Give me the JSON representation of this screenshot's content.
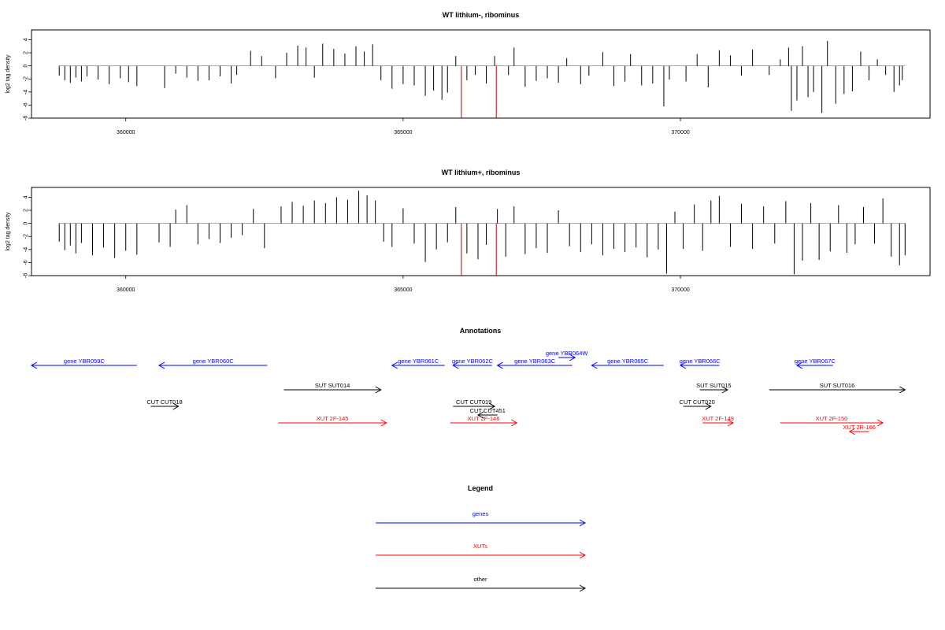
{
  "chart_data": [
    {
      "type": "bar",
      "title": "WT lithium-, ribominus",
      "ylabel": "log2 tag density",
      "ylim": [
        -8,
        5.5
      ],
      "y_ticks": [
        "-8",
        "-6",
        "-4",
        "-2",
        "0",
        "2",
        "4"
      ],
      "xlim": [
        358300,
        374500
      ],
      "x_ticks": [
        "360000",
        "365000",
        "370000"
      ],
      "highlight_lines": [
        366050,
        366680
      ],
      "highlight_color": "#cc0000",
      "series": [
        {
          "values": [
            [
              358800,
              -1.5
            ],
            [
              358900,
              -2.2
            ],
            [
              359000,
              -2.6
            ],
            [
              359100,
              -1.8
            ],
            [
              359200,
              -2.4
            ],
            [
              359300,
              -1.6
            ],
            [
              359500,
              -2.1
            ],
            [
              359700,
              -2.8
            ],
            [
              359900,
              -1.9
            ],
            [
              360050,
              -2.5
            ],
            [
              360200,
              -3.1
            ],
            [
              360700,
              -3.4
            ],
            [
              360900,
              -1.2
            ],
            [
              361100,
              -1.8
            ],
            [
              361300,
              -2.3
            ],
            [
              361500,
              -2.2
            ],
            [
              361700,
              -1.6
            ],
            [
              361900,
              -2.7
            ],
            [
              362000,
              -1.4
            ],
            [
              362250,
              2.3
            ],
            [
              362450,
              1.5
            ],
            [
              362700,
              -1.9
            ],
            [
              362900,
              2.0
            ],
            [
              363100,
              3.1
            ],
            [
              363250,
              2.8
            ],
            [
              363400,
              -1.8
            ],
            [
              363550,
              3.4
            ],
            [
              363750,
              2.6
            ],
            [
              363950,
              1.9
            ],
            [
              364150,
              3.0
            ],
            [
              364300,
              2.2
            ],
            [
              364450,
              3.3
            ],
            [
              364600,
              -2.2
            ],
            [
              364800,
              -3.5
            ],
            [
              365000,
              -2.8
            ],
            [
              365200,
              -3.0
            ],
            [
              365400,
              -4.6
            ],
            [
              365550,
              -3.8
            ],
            [
              365700,
              -5.2
            ],
            [
              365800,
              -4.1
            ],
            [
              365950,
              1.5
            ],
            [
              366150,
              -2.2
            ],
            [
              366300,
              -1.4
            ],
            [
              366500,
              -2.7
            ],
            [
              366650,
              1.5
            ],
            [
              366900,
              -1.4
            ],
            [
              367000,
              2.8
            ],
            [
              367200,
              -3.2
            ],
            [
              367400,
              -2.3
            ],
            [
              367600,
              -1.9
            ],
            [
              367800,
              -2.6
            ],
            [
              367950,
              1.2
            ],
            [
              368200,
              -2.8
            ],
            [
              368350,
              -1.5
            ],
            [
              368600,
              2.1
            ],
            [
              368800,
              -3.1
            ],
            [
              369000,
              -2.4
            ],
            [
              369100,
              1.8
            ],
            [
              369300,
              -3.0
            ],
            [
              369500,
              -2.7
            ],
            [
              369700,
              -6.2
            ],
            [
              369800,
              -2.1
            ],
            [
              370100,
              -2.4
            ],
            [
              370300,
              1.8
            ],
            [
              370500,
              -3.3
            ],
            [
              370700,
              2.4
            ],
            [
              370900,
              1.6
            ],
            [
              371100,
              -1.5
            ],
            [
              371300,
              2.5
            ],
            [
              371600,
              -1.4
            ],
            [
              371800,
              1.0
            ],
            [
              371950,
              2.8
            ],
            [
              372000,
              -6.9
            ],
            [
              372100,
              -5.3
            ],
            [
              372200,
              3.0
            ],
            [
              372300,
              -4.8
            ],
            [
              372400,
              -4.0
            ],
            [
              372550,
              -7.2
            ],
            [
              372650,
              3.8
            ],
            [
              372800,
              -5.8
            ],
            [
              372950,
              -4.3
            ],
            [
              373100,
              -3.9
            ],
            [
              373250,
              2.2
            ],
            [
              373400,
              -2.2
            ],
            [
              373550,
              1.0
            ],
            [
              373700,
              -1.4
            ],
            [
              373850,
              -4.0
            ],
            [
              373950,
              -3.0
            ],
            [
              374000,
              -2.2
            ]
          ]
        }
      ]
    },
    {
      "type": "bar",
      "title": "WT lithium+, ribominus",
      "ylabel": "log2 tag density",
      "ylim": [
        -8,
        5.5
      ],
      "y_ticks": [
        "-8",
        "-6",
        "-4",
        "-2",
        "0",
        "2",
        "4"
      ],
      "xlim": [
        358300,
        374500
      ],
      "x_ticks": [
        "360000",
        "365000",
        "370000"
      ],
      "highlight_lines": [
        366050,
        366680
      ],
      "highlight_color": "#cc0000",
      "series": [
        {
          "values": [
            [
              358800,
              -2.8
            ],
            [
              358900,
              -4.1
            ],
            [
              359000,
              -3.4
            ],
            [
              359100,
              -4.6
            ],
            [
              359200,
              -3.0
            ],
            [
              359400,
              -4.9
            ],
            [
              359600,
              -3.7
            ],
            [
              359800,
              -5.3
            ],
            [
              360000,
              -4.2
            ],
            [
              360200,
              -4.8
            ],
            [
              360600,
              -2.9
            ],
            [
              360800,
              -3.6
            ],
            [
              360900,
              2.1
            ],
            [
              361100,
              2.8
            ],
            [
              361300,
              -3.2
            ],
            [
              361500,
              -2.4
            ],
            [
              361700,
              -3.0
            ],
            [
              361900,
              -2.2
            ],
            [
              362100,
              -1.8
            ],
            [
              362300,
              2.2
            ],
            [
              362500,
              -3.8
            ],
            [
              362800,
              2.6
            ],
            [
              363000,
              3.3
            ],
            [
              363200,
              2.7
            ],
            [
              363400,
              3.5
            ],
            [
              363600,
              3.1
            ],
            [
              363800,
              4.0
            ],
            [
              364000,
              3.6
            ],
            [
              364200,
              5.0
            ],
            [
              364350,
              4.3
            ],
            [
              364500,
              3.5
            ],
            [
              364650,
              -2.8
            ],
            [
              364800,
              -3.6
            ],
            [
              365000,
              2.3
            ],
            [
              365200,
              -3.1
            ],
            [
              365400,
              -5.9
            ],
            [
              365600,
              -4.0
            ],
            [
              365800,
              -2.9
            ],
            [
              365950,
              2.5
            ],
            [
              366150,
              -4.6
            ],
            [
              366350,
              -5.5
            ],
            [
              366500,
              -3.3
            ],
            [
              366700,
              2.2
            ],
            [
              366850,
              -5.1
            ],
            [
              367000,
              2.6
            ],
            [
              367200,
              -4.7
            ],
            [
              367400,
              -3.8
            ],
            [
              367600,
              -4.5
            ],
            [
              367800,
              2.0
            ],
            [
              368000,
              -3.5
            ],
            [
              368200,
              -4.4
            ],
            [
              368400,
              -3.2
            ],
            [
              368600,
              -4.9
            ],
            [
              368800,
              -3.9
            ],
            [
              369000,
              -4.4
            ],
            [
              369200,
              -3.7
            ],
            [
              369400,
              -5.2
            ],
            [
              369600,
              -4.0
            ],
            [
              369750,
              -7.7
            ],
            [
              369900,
              1.8
            ],
            [
              370050,
              -3.9
            ],
            [
              370250,
              2.9
            ],
            [
              370400,
              -4.2
            ],
            [
              370550,
              3.5
            ],
            [
              370700,
              4.2
            ],
            [
              370900,
              -3.6
            ],
            [
              371100,
              3.0
            ],
            [
              371300,
              -3.9
            ],
            [
              371500,
              2.6
            ],
            [
              371700,
              -3.1
            ],
            [
              371900,
              3.4
            ],
            [
              372050,
              -7.8
            ],
            [
              372200,
              -5.7
            ],
            [
              372350,
              3.1
            ],
            [
              372500,
              -5.6
            ],
            [
              372700,
              -4.3
            ],
            [
              372850,
              2.8
            ],
            [
              373000,
              -4.5
            ],
            [
              373150,
              -3.2
            ],
            [
              373300,
              2.5
            ],
            [
              373500,
              -3.1
            ],
            [
              373650,
              3.8
            ],
            [
              373800,
              -5.1
            ],
            [
              373950,
              -6.4
            ],
            [
              374050,
              -4.9
            ]
          ]
        }
      ]
    }
  ],
  "annotations": {
    "title": "Annotations",
    "features": [
      {
        "label": "gene YBR059C",
        "color": "#0000ff",
        "start": 358300,
        "end": 360200,
        "strand": "-",
        "row": 1
      },
      {
        "label": "gene YBR060C",
        "color": "#0000ff",
        "start": 360600,
        "end": 362550,
        "strand": "-",
        "row": 1
      },
      {
        "label": "gene YBR061C",
        "color": "#0000ff",
        "start": 364800,
        "end": 365750,
        "strand": "-",
        "row": 1
      },
      {
        "label": "gene YBR062C",
        "color": "#0000ff",
        "start": 365900,
        "end": 366600,
        "strand": "-",
        "row": 1
      },
      {
        "label": "gene YBR063C",
        "color": "#0000ff",
        "start": 366700,
        "end": 368050,
        "strand": "-",
        "row": 1
      },
      {
        "label": "gene YBR064W",
        "color": "#0000ff",
        "start": 367800,
        "end": 368100,
        "strand": "+",
        "row": 0
      },
      {
        "label": "gene YBR065C",
        "color": "#0000ff",
        "start": 368400,
        "end": 369700,
        "strand": "-",
        "row": 1
      },
      {
        "label": "gene YBR066C",
        "color": "#0000ff",
        "start": 370000,
        "end": 370700,
        "strand": "-",
        "row": 1
      },
      {
        "label": "gene YBR067C",
        "color": "#0000ff",
        "start": 372100,
        "end": 372750,
        "strand": "-",
        "row": 1
      },
      {
        "label": "SUT SUT014",
        "color": "#000000",
        "start": 362850,
        "end": 364600,
        "strand": "+",
        "row": 2
      },
      {
        "label": "SUT SUT015",
        "color": "#000000",
        "start": 370350,
        "end": 370850,
        "strand": "+",
        "row": 2
      },
      {
        "label": "SUT SUT016",
        "color": "#000000",
        "start": 371600,
        "end": 374050,
        "strand": "+",
        "row": 2
      },
      {
        "label": "CUT CUT018",
        "color": "#000000",
        "start": 360450,
        "end": 360950,
        "strand": "+",
        "row": 3
      },
      {
        "label": "CUT CUT019",
        "color": "#000000",
        "start": 365900,
        "end": 366650,
        "strand": "+",
        "row": 3
      },
      {
        "label": "CUT CUT451",
        "color": "#000000",
        "start": 366350,
        "end": 366700,
        "strand": "-",
        "row": 3.55
      },
      {
        "label": "CUT CUT020",
        "color": "#000000",
        "start": 370050,
        "end": 370550,
        "strand": "+",
        "row": 3
      },
      {
        "label": "XUT 2F-145",
        "color": "#ff0000",
        "start": 362750,
        "end": 364700,
        "strand": "+",
        "row": 4
      },
      {
        "label": "XUT 2F-146",
        "color": "#ff0000",
        "start": 365850,
        "end": 367050,
        "strand": "+",
        "row": 4
      },
      {
        "label": "XUT 2F-149",
        "color": "#ff0000",
        "start": 370400,
        "end": 370950,
        "strand": "+",
        "row": 4
      },
      {
        "label": "XUT 2F-150",
        "color": "#ff0000",
        "start": 371800,
        "end": 373650,
        "strand": "+",
        "row": 4
      },
      {
        "label": "XUT 2R-166",
        "color": "#ff0000",
        "start": 373050,
        "end": 373400,
        "strand": "-",
        "row": 4.55
      }
    ]
  },
  "legend": {
    "title": "Legend",
    "entries": [
      {
        "label": "genes",
        "color": "#0000ff"
      },
      {
        "label": "XUTs",
        "color": "#ff0000"
      },
      {
        "label": "other",
        "color": "#000000"
      }
    ]
  }
}
